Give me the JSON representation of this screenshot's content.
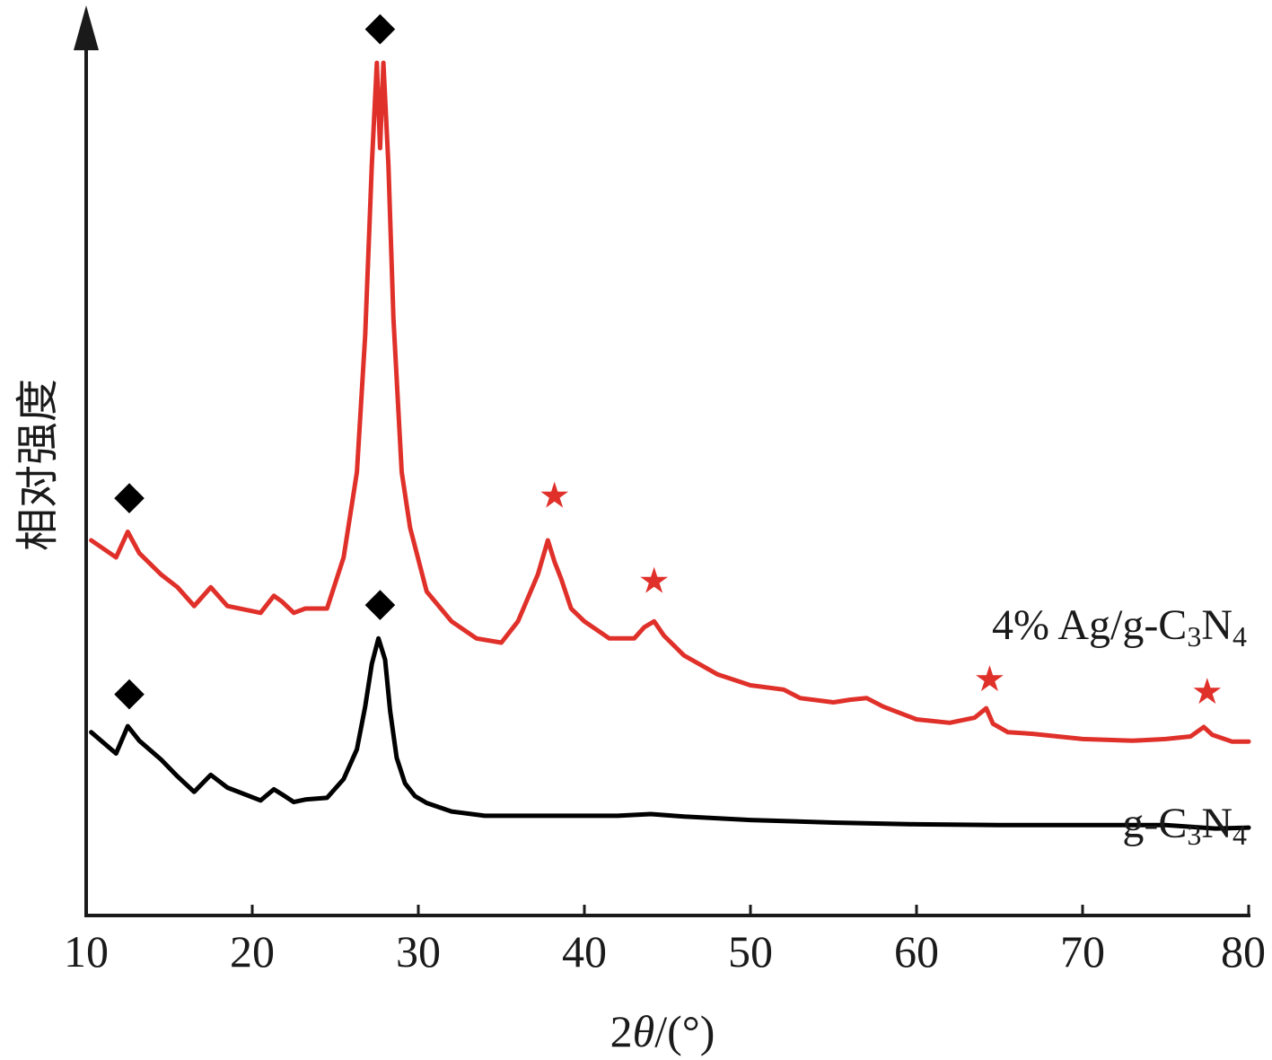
{
  "chart_data": {
    "type": "line",
    "xlabel": "2θ/(°)",
    "xlabel_prefix": "2",
    "xlabel_theta": "θ",
    "xlabel_suffix": "/(°)",
    "ylabel": "相对强度",
    "xlim": [
      10,
      80
    ],
    "xticks": [
      "10",
      "20",
      "30",
      "40",
      "50",
      "60",
      "70",
      "80"
    ],
    "grid": false,
    "series": [
      {
        "name": "4% Ag/g-C3N4",
        "label_main": "4% Ag/g-C",
        "label_sub1": "3",
        "label_mid": "N",
        "label_sub2": "4",
        "color": "#e0302a",
        "x": [
          10.3,
          11.8,
          12.5,
          13.2,
          14.5,
          15.5,
          16.5,
          17.5,
          18.5,
          20.5,
          21.3,
          21.8,
          22.5,
          23.2,
          24.5,
          25.5,
          26.3,
          26.8,
          27.2,
          27.5,
          27.7,
          27.9,
          28.2,
          28.5,
          29.0,
          29.5,
          30.5,
          32.0,
          33.5,
          35.0,
          36.0,
          37.2,
          37.8,
          38.2,
          38.6,
          39.2,
          40.0,
          41.5,
          43.0,
          43.6,
          44.2,
          44.8,
          46.0,
          48.0,
          50.0,
          52.0,
          53.0,
          55.0,
          56.0,
          57.0,
          58.0,
          60.0,
          62.0,
          63.5,
          64.2,
          64.6,
          65.5,
          67.0,
          70.0,
          73.0,
          75.0,
          76.5,
          77.3,
          77.8,
          79.0,
          80.0
        ],
        "y": [
          0.44,
          0.42,
          0.45,
          0.425,
          0.4,
          0.385,
          0.363,
          0.385,
          0.363,
          0.355,
          0.375,
          0.368,
          0.355,
          0.36,
          0.36,
          0.42,
          0.52,
          0.68,
          0.88,
          1.0,
          0.9,
          1.0,
          0.88,
          0.7,
          0.52,
          0.455,
          0.38,
          0.345,
          0.325,
          0.32,
          0.345,
          0.4,
          0.44,
          0.415,
          0.395,
          0.36,
          0.345,
          0.325,
          0.325,
          0.338,
          0.345,
          0.328,
          0.305,
          0.283,
          0.27,
          0.265,
          0.255,
          0.25,
          0.253,
          0.255,
          0.245,
          0.23,
          0.226,
          0.232,
          0.243,
          0.225,
          0.215,
          0.213,
          0.207,
          0.205,
          0.207,
          0.21,
          0.221,
          0.212,
          0.204,
          0.204
        ]
      },
      {
        "name": "g-C3N4",
        "label_main": "g-C",
        "label_sub1": "3",
        "label_mid": "N",
        "label_sub2": "4",
        "color": "#000000",
        "x": [
          10.3,
          11.8,
          12.5,
          13.2,
          14.5,
          15.5,
          16.5,
          17.5,
          18.5,
          20.5,
          21.3,
          21.8,
          22.5,
          23.2,
          24.5,
          25.5,
          26.3,
          26.8,
          27.2,
          27.6,
          28.0,
          28.3,
          28.7,
          29.2,
          29.8,
          30.5,
          32.0,
          34.0,
          38.0,
          42.0,
          44.0,
          46.0,
          50.0,
          55.0,
          60.0,
          65.0,
          70.0,
          75.0,
          78.0,
          80.0
        ],
        "y": [
          0.215,
          0.19,
          0.222,
          0.205,
          0.183,
          0.163,
          0.145,
          0.165,
          0.15,
          0.135,
          0.148,
          0.142,
          0.133,
          0.136,
          0.138,
          0.16,
          0.195,
          0.245,
          0.295,
          0.325,
          0.3,
          0.24,
          0.185,
          0.155,
          0.14,
          0.132,
          0.122,
          0.117,
          0.117,
          0.117,
          0.119,
          0.116,
          0.112,
          0.109,
          0.107,
          0.106,
          0.106,
          0.106,
          0.102,
          0.103
        ]
      }
    ],
    "annotations": [
      {
        "symbol": "◆",
        "x": 12.6,
        "y": 0.49,
        "color": "#000000"
      },
      {
        "symbol": "◆",
        "x": 27.7,
        "y": 1.04,
        "color": "#000000"
      },
      {
        "symbol": "★",
        "x": 38.2,
        "y": 0.49,
        "color": "#e0302a"
      },
      {
        "symbol": "★",
        "x": 44.2,
        "y": 0.39,
        "color": "#e0302a"
      },
      {
        "symbol": "★",
        "x": 64.4,
        "y": 0.275,
        "color": "#e0302a"
      },
      {
        "symbol": "★",
        "x": 77.5,
        "y": 0.26,
        "color": "#e0302a"
      },
      {
        "symbol": "◆",
        "x": 12.6,
        "y": 0.26,
        "color": "#000000"
      },
      {
        "symbol": "◆",
        "x": 27.7,
        "y": 0.365,
        "color": "#000000"
      }
    ]
  }
}
